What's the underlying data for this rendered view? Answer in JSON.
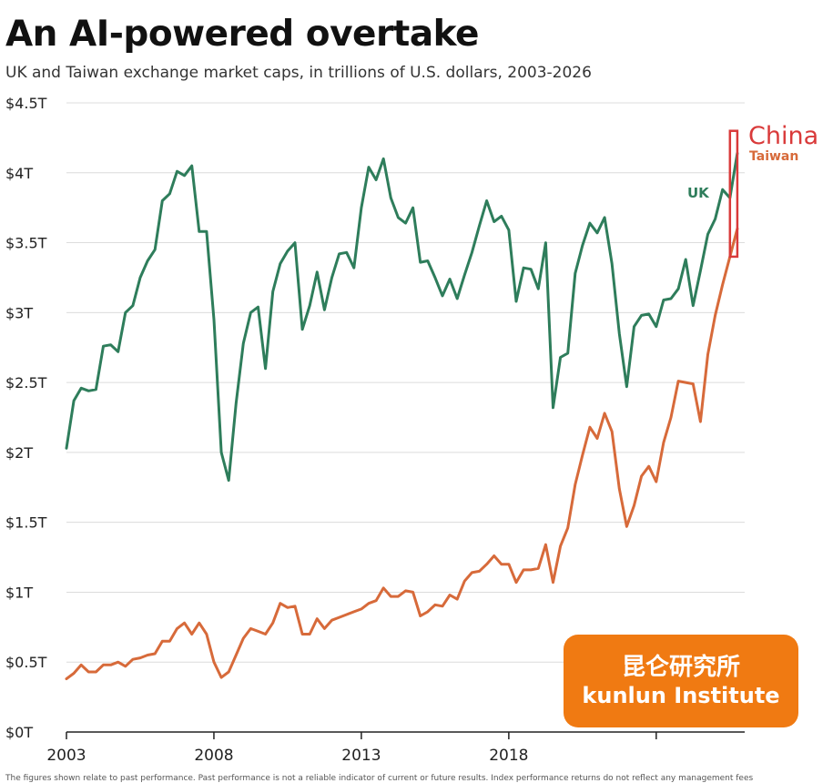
{
  "chart_data": {
    "type": "line",
    "title": "An AI-powered overtake",
    "subtitle": "UK and Taiwan exchange market caps, in trillions of U.S. dollars, 2003-2026",
    "xlabel": "",
    "ylabel": "",
    "xlim": [
      2003,
      2026
    ],
    "ylim": [
      0,
      4.5
    ],
    "y_ticks": [
      0,
      0.5,
      1,
      1.5,
      2,
      2.5,
      3,
      3.5,
      4,
      4.5
    ],
    "y_tick_labels": [
      "$0T",
      "$0.5T",
      "$1T",
      "$1.5T",
      "$2T",
      "$2.5T",
      "$3T",
      "$3.5T",
      "$4T",
      "$4.5T"
    ],
    "x_ticks": [
      2003,
      2008,
      2013,
      2018,
      2023
    ],
    "x_tick_labels": [
      "2003",
      "2008",
      "2013",
      "2018",
      ""
    ],
    "grid": true,
    "series": [
      {
        "name": "UK",
        "color": "#2e7d5b",
        "x": [
          2003.0,
          2003.25,
          2003.5,
          2003.75,
          2004.0,
          2004.25,
          2004.5,
          2004.75,
          2005.0,
          2005.25,
          2005.5,
          2005.75,
          2006.0,
          2006.25,
          2006.5,
          2006.75,
          2007.0,
          2007.25,
          2007.5,
          2007.75,
          2008.0,
          2008.25,
          2008.5,
          2008.75,
          2009.0,
          2009.25,
          2009.5,
          2009.75,
          2010.0,
          2010.25,
          2010.5,
          2010.75,
          2011.0,
          2011.25,
          2011.5,
          2011.75,
          2012.0,
          2012.25,
          2012.5,
          2012.75,
          2013.0,
          2013.25,
          2013.5,
          2013.75,
          2014.0,
          2014.25,
          2014.5,
          2014.75,
          2015.0,
          2015.25,
          2015.5,
          2015.75,
          2016.0,
          2016.25,
          2016.5,
          2016.75,
          2017.0,
          2017.25,
          2017.5,
          2017.75,
          2018.0,
          2018.25,
          2018.5,
          2018.75,
          2019.0,
          2019.25,
          2019.5,
          2019.75,
          2020.0,
          2020.25,
          2020.5,
          2020.75,
          2021.0,
          2021.25,
          2021.5,
          2021.75,
          2022.0,
          2022.25,
          2022.5,
          2022.75,
          2023.0,
          2023.25,
          2023.5,
          2023.75,
          2024.0,
          2024.25,
          2024.5,
          2024.75,
          2025.0,
          2025.25,
          2025.5,
          2025.75
        ],
        "values": [
          2.03,
          2.37,
          2.46,
          2.44,
          2.45,
          2.76,
          2.77,
          2.72,
          3.0,
          3.05,
          3.25,
          3.37,
          3.45,
          3.8,
          3.85,
          4.01,
          3.98,
          4.05,
          3.58,
          3.58,
          2.95,
          2.0,
          1.8,
          2.35,
          2.78,
          3.0,
          3.04,
          2.6,
          3.15,
          3.35,
          3.44,
          3.5,
          2.88,
          3.05,
          3.29,
          3.02,
          3.25,
          3.42,
          3.43,
          3.32,
          3.75,
          4.04,
          3.95,
          4.1,
          3.82,
          3.68,
          3.64,
          3.75,
          3.36,
          3.37,
          3.25,
          3.12,
          3.24,
          3.1,
          3.27,
          3.43,
          3.62,
          3.8,
          3.65,
          3.69,
          3.59,
          3.08,
          3.32,
          3.31,
          3.17,
          3.5,
          2.32,
          2.68,
          2.71,
          3.28,
          3.48,
          3.64,
          3.57,
          3.68,
          3.35,
          2.85,
          2.47,
          2.9,
          2.98,
          2.99,
          2.9,
          3.09,
          3.1,
          3.17,
          3.38,
          3.05,
          3.3,
          3.56,
          3.67,
          3.88,
          3.82,
          4.14
        ]
      },
      {
        "name": "Taiwan",
        "color": "#d76a3a",
        "x": [
          2003.0,
          2003.25,
          2003.5,
          2003.75,
          2004.0,
          2004.25,
          2004.5,
          2004.75,
          2005.0,
          2005.25,
          2005.5,
          2005.75,
          2006.0,
          2006.25,
          2006.5,
          2006.75,
          2007.0,
          2007.25,
          2007.5,
          2007.75,
          2008.0,
          2008.25,
          2008.5,
          2008.75,
          2009.0,
          2009.25,
          2009.5,
          2009.75,
          2010.0,
          2010.25,
          2010.5,
          2010.75,
          2011.0,
          2011.25,
          2011.5,
          2011.75,
          2012.0,
          2012.25,
          2012.5,
          2012.75,
          2013.0,
          2013.25,
          2013.5,
          2013.75,
          2014.0,
          2014.25,
          2014.5,
          2014.75,
          2015.0,
          2015.25,
          2015.5,
          2015.75,
          2016.0,
          2016.25,
          2016.5,
          2016.75,
          2017.0,
          2017.25,
          2017.5,
          2017.75,
          2018.0,
          2018.25,
          2018.5,
          2018.75,
          2019.0,
          2019.25,
          2019.5,
          2019.75,
          2020.0,
          2020.25,
          2020.5,
          2020.75,
          2021.0,
          2021.25,
          2021.5,
          2021.75,
          2022.0,
          2022.25,
          2022.5,
          2022.75,
          2023.0,
          2023.25,
          2023.5,
          2023.75,
          2024.0,
          2024.25,
          2024.5,
          2024.75,
          2025.0,
          2025.25,
          2025.5,
          2025.75
        ],
        "values": [
          0.38,
          0.42,
          0.48,
          0.43,
          0.43,
          0.48,
          0.48,
          0.5,
          0.47,
          0.52,
          0.53,
          0.55,
          0.56,
          0.65,
          0.65,
          0.74,
          0.78,
          0.7,
          0.78,
          0.7,
          0.5,
          0.39,
          0.43,
          0.55,
          0.67,
          0.74,
          0.72,
          0.7,
          0.78,
          0.92,
          0.89,
          0.9,
          0.7,
          0.7,
          0.81,
          0.74,
          0.8,
          0.82,
          0.84,
          0.86,
          0.88,
          0.92,
          0.94,
          1.03,
          0.97,
          0.97,
          1.01,
          1.0,
          0.83,
          0.86,
          0.91,
          0.9,
          0.98,
          0.95,
          1.08,
          1.14,
          1.15,
          1.2,
          1.26,
          1.2,
          1.2,
          1.07,
          1.16,
          1.16,
          1.17,
          1.34,
          1.07,
          1.33,
          1.46,
          1.77,
          1.98,
          2.18,
          2.1,
          2.28,
          2.15,
          1.74,
          1.47,
          1.62,
          1.83,
          1.9,
          1.79,
          2.07,
          2.25,
          2.51,
          2.5,
          2.49,
          2.22,
          2.7,
          2.98,
          3.2,
          3.4,
          3.6
        ]
      }
    ],
    "annotations": {
      "uk_label": "UK",
      "taiwan_label": "Taiwan",
      "china_label": "China"
    },
    "highlight_box_range": {
      "x": [
        2025.5,
        2025.75
      ],
      "y": [
        3.4,
        4.3
      ],
      "color": "#d93a3a"
    }
  },
  "watermark": {
    "line1": "昆仑研究所",
    "line2": "kunlun Institute"
  },
  "footnote": "The figures shown relate to past performance. Past performance is not a reliable indicator of current or future results. Index performance returns do not reflect any management fees"
}
